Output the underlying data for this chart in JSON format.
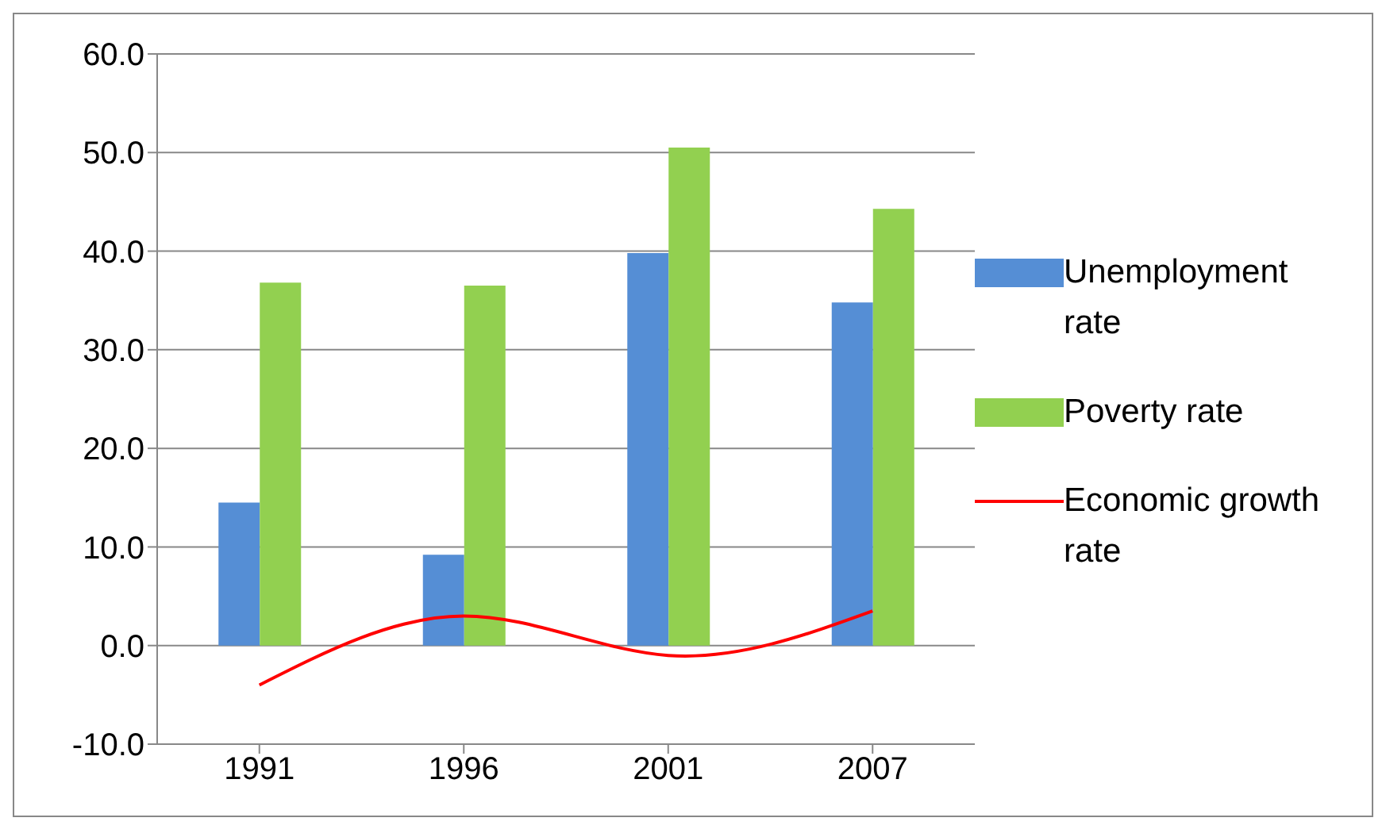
{
  "chart_data": {
    "type": "bar",
    "categories": [
      "1991",
      "1996",
      "2001",
      "2007"
    ],
    "series": [
      {
        "name": "Unemployment rate",
        "color": "#558ed5",
        "values": [
          14.5,
          9.2,
          39.8,
          34.8
        ]
      },
      {
        "name": "Poverty rate",
        "color": "#92d050",
        "values": [
          36.8,
          36.5,
          50.5,
          44.3
        ]
      },
      {
        "name": "Economic growth rate",
        "type": "line",
        "color": "#ff0000",
        "values": [
          -4.0,
          3.0,
          -1.0,
          3.5
        ]
      }
    ],
    "ylim": [
      -10,
      60
    ],
    "yticks": [
      {
        "value": -10,
        "label": "-10.0"
      },
      {
        "value": 0,
        "label": "0.0"
      },
      {
        "value": 10,
        "label": "10.0"
      },
      {
        "value": 20,
        "label": "20.0"
      },
      {
        "value": 30,
        "label": "30.0"
      },
      {
        "value": 40,
        "label": "40.0"
      },
      {
        "value": 50,
        "label": "50.0"
      },
      {
        "value": 60,
        "label": "60.0"
      }
    ],
    "grid": "y",
    "legend": "right",
    "marker": "none"
  }
}
